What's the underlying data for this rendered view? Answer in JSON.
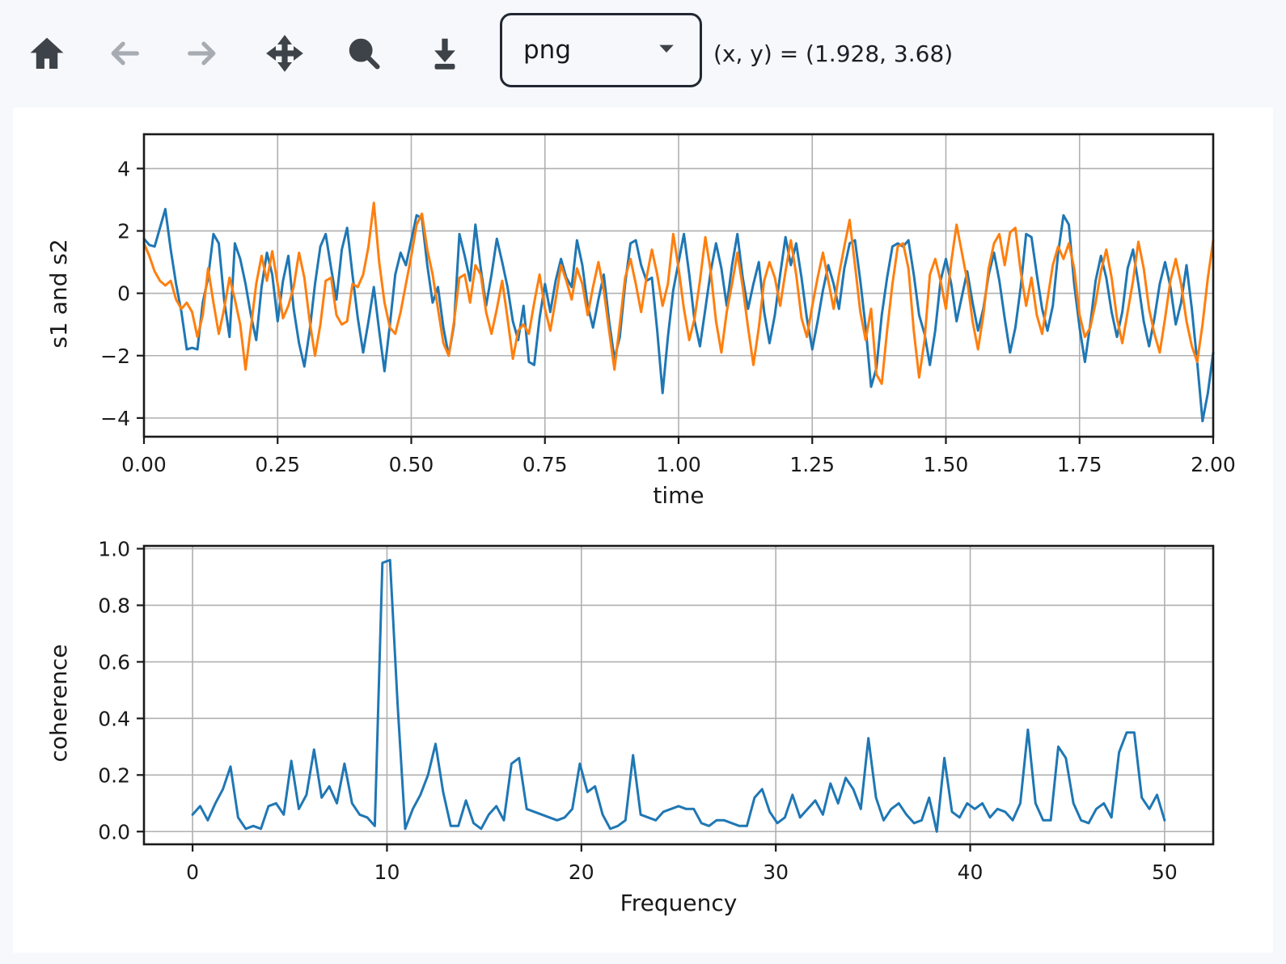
{
  "toolbar": {
    "buttons": [
      {
        "id": "home",
        "icon": "home-icon",
        "tooltip": "Reset original view",
        "enabled": true
      },
      {
        "id": "back",
        "icon": "arrow-left-icon",
        "tooltip": "Back to previous view",
        "enabled": false
      },
      {
        "id": "forward",
        "icon": "arrow-right-icon",
        "tooltip": "Forward to next view",
        "enabled": false
      },
      {
        "id": "pan",
        "icon": "pan-arrows-icon",
        "tooltip": "Pan axes",
        "enabled": true
      },
      {
        "id": "zoom",
        "icon": "zoom-plus-icon",
        "tooltip": "Zoom to rectangle",
        "enabled": true
      },
      {
        "id": "download",
        "icon": "download-icon",
        "tooltip": "Download plot",
        "enabled": true
      }
    ],
    "format_select": {
      "value": "png"
    },
    "coordinates": "(x, y) = (1.928, 3.68)"
  },
  "colors": {
    "page_background": "#f7f8fc",
    "figure_background": "#ffffff",
    "series_blue": "#1f77b4",
    "series_orange": "#ff7f0e",
    "grid": "#b0b0b0",
    "icon_active": "#3d4349",
    "icon_disabled": "#a7abb2"
  },
  "chart_data": [
    {
      "type": "line",
      "title": "",
      "xlabel": "time",
      "ylabel": "s1 and s2",
      "grid": true,
      "legend": null,
      "xlim": [
        0,
        2
      ],
      "ylim": [
        -4.6,
        5.1
      ],
      "xticks": {
        "values": [
          0,
          0.25,
          0.5,
          0.75,
          1.0,
          1.25,
          1.5,
          1.75,
          2.0
        ],
        "labels": [
          "0.00",
          "0.25",
          "0.50",
          "0.75",
          "1.00",
          "1.25",
          "1.50",
          "1.75",
          "2.00"
        ]
      },
      "yticks": {
        "values": [
          -4,
          -2,
          0,
          2,
          4
        ],
        "labels": [
          "−4",
          "−2",
          "0",
          "2",
          "4"
        ]
      },
      "series": [
        {
          "name": "s1",
          "color": "#1f77b4",
          "x_start": 0,
          "x_step": 0.01,
          "y": [
            1.75,
            1.55,
            1.5,
            2.1,
            2.7,
            1.4,
            0.3,
            -0.6,
            -1.8,
            -1.75,
            -1.8,
            -0.3,
            0.5,
            1.9,
            1.6,
            -0.2,
            -1.4,
            1.6,
            1.1,
            0.3,
            -0.7,
            -1.5,
            0.2,
            1.3,
            0.6,
            -0.9,
            0.4,
            1.2,
            -0.5,
            -1.6,
            -2.35,
            -1.2,
            0.3,
            1.5,
            1.9,
            0.8,
            -0.2,
            1.4,
            2.1,
            0.6,
            -0.8,
            -1.9,
            -0.9,
            0.2,
            -1.2,
            -2.5,
            -1.0,
            0.6,
            1.3,
            0.9,
            1.7,
            2.5,
            2.4,
            0.9,
            -0.3,
            0.2,
            -1.1,
            -2.0,
            -1.0,
            1.9,
            1.2,
            0.4,
            2.2,
            0.8,
            -0.4,
            0.6,
            1.75,
            1.0,
            0.2,
            -0.9,
            -1.5,
            -0.4,
            -2.2,
            -2.3,
            -0.8,
            0.3,
            -0.6,
            0.4,
            1.1,
            0.5,
            0.2,
            1.7,
            0.9,
            -0.4,
            -1.1,
            -0.2,
            0.6,
            -0.9,
            -2.1,
            -1.4,
            0.3,
            1.6,
            1.7,
            0.9,
            0.4,
            0.5,
            -1.2,
            -3.2,
            -1.4,
            0.1,
            1.0,
            1.9,
            0.6,
            -0.9,
            -1.7,
            -0.5,
            0.7,
            1.6,
            0.8,
            -0.4,
            0.9,
            1.9,
            0.5,
            -0.5,
            0.3,
            1.0,
            -0.6,
            -1.6,
            -0.7,
            0.6,
            1.8,
            0.9,
            1.6,
            0.5,
            -0.8,
            -1.8,
            -0.9,
            0.1,
            0.9,
            0.3,
            -0.5,
            0.8,
            1.6,
            1.7,
            0.4,
            -1.1,
            -3.0,
            -2.4,
            -0.7,
            0.5,
            1.5,
            1.6,
            1.5,
            1.7,
            0.6,
            -0.7,
            -1.3,
            -2.3,
            -1.2,
            0.4,
            1.1,
            0.3,
            -0.9,
            -0.1,
            0.7,
            -0.3,
            -1.2,
            -0.5,
            0.6,
            1.3,
            0.4,
            -0.8,
            -1.9,
            -1.1,
            0.2,
            1.9,
            1.8,
            0.6,
            -0.5,
            -1.2,
            -0.4,
            1.3,
            2.5,
            2.2,
            0.3,
            -1.1,
            -2.2,
            -1.0,
            0.4,
            1.2,
            0.5,
            -0.6,
            -1.4,
            -0.6,
            0.8,
            1.4,
            0.3,
            -0.9,
            -1.7,
            -0.8,
            0.3,
            1.0,
            0.2,
            -1.0,
            -0.3,
            0.9,
            -0.5,
            -2.2,
            -4.1,
            -3.2,
            -1.9
          ]
        },
        {
          "name": "s2",
          "color": "#ff7f0e",
          "x_start": 0,
          "x_step": 0.01,
          "y": [
            1.6,
            1.2,
            0.7,
            0.4,
            0.25,
            0.4,
            -0.2,
            -0.5,
            -0.3,
            -0.6,
            -1.4,
            -0.7,
            0.8,
            -0.3,
            -1.3,
            -0.5,
            0.5,
            -0.2,
            -1.0,
            -2.45,
            -1.1,
            0.3,
            1.2,
            0.4,
            1.35,
            0.3,
            -0.8,
            -0.4,
            0.2,
            1.3,
            0.5,
            -0.9,
            -2.0,
            -1.0,
            0.4,
            0.5,
            -0.7,
            -1.0,
            -0.9,
            0.3,
            0.2,
            0.6,
            1.5,
            2.9,
            1.0,
            -0.3,
            -1.1,
            -1.3,
            -0.6,
            0.3,
            1.2,
            2.2,
            2.55,
            1.4,
            0.6,
            -0.5,
            -1.6,
            -2.0,
            -0.9,
            0.5,
            0.6,
            -0.3,
            0.9,
            0.6,
            -0.6,
            -1.3,
            -0.5,
            0.4,
            -0.8,
            -2.1,
            -1.2,
            -1.0,
            -1.3,
            -0.3,
            0.6,
            -0.5,
            -1.2,
            -0.2,
            0.9,
            0.4,
            -0.2,
            0.8,
            0.3,
            -0.7,
            0.2,
            1.0,
            0.1,
            -1.2,
            -2.45,
            -1.0,
            0.5,
            1.1,
            0.3,
            -0.6,
            0.5,
            1.4,
            0.6,
            -0.4,
            0.3,
            1.9,
            0.8,
            -0.5,
            -1.5,
            -0.8,
            0.4,
            1.8,
            0.7,
            -0.9,
            -1.9,
            -0.6,
            0.3,
            1.3,
            0.2,
            -1.1,
            -2.3,
            -1.1,
            0.4,
            1.0,
            0.5,
            -0.4,
            0.7,
            1.7,
            0.6,
            -0.8,
            -1.4,
            -0.4,
            0.5,
            1.3,
            0.4,
            -0.5,
            0.6,
            1.5,
            2.35,
            0.9,
            -0.6,
            -1.5,
            -0.5,
            -2.6,
            -2.9,
            -1.2,
            0.3,
            1.5,
            1.6,
            0.8,
            -1.2,
            -2.7,
            -1.5,
            0.6,
            1.1,
            0.4,
            -0.5,
            1.0,
            2.2,
            1.3,
            0.4,
            -0.9,
            -1.8,
            -0.7,
            0.8,
            1.6,
            1.9,
            0.9,
            1.95,
            2.1,
            0.7,
            -0.4,
            0.5,
            -0.7,
            -1.3,
            -0.2,
            0.9,
            1.5,
            1.1,
            1.6,
            0.8,
            -0.7,
            -1.4,
            -1.1,
            -0.3,
            0.7,
            1.4,
            0.5,
            -0.8,
            -1.6,
            -0.6,
            0.4,
            1.65,
            0.8,
            -0.5,
            -1.3,
            -1.9,
            -0.8,
            0.4,
            1.1,
            0.3,
            -0.9,
            -1.7,
            -2.2,
            -1.0,
            0.5,
            1.7
          ]
        }
      ]
    },
    {
      "type": "line",
      "title": "",
      "xlabel": "Frequency",
      "ylabel": "coherence",
      "grid": true,
      "legend": null,
      "xlim": [
        -2.5,
        52.5
      ],
      "ylim": [
        -0.045,
        1.01
      ],
      "xticks": {
        "values": [
          0,
          10,
          20,
          30,
          40,
          50
        ],
        "labels": [
          "0",
          "10",
          "20",
          "30",
          "40",
          "50"
        ]
      },
      "yticks": {
        "values": [
          0,
          0.2,
          0.4,
          0.6,
          0.8,
          1.0
        ],
        "labels": [
          "0.0",
          "0.2",
          "0.4",
          "0.6",
          "0.8",
          "1.0"
        ]
      },
      "series": [
        {
          "name": "coherence",
          "color": "#1f77b4",
          "x_start": 0,
          "x_step": 0.390625,
          "y": [
            0.06,
            0.09,
            0.04,
            0.1,
            0.15,
            0.23,
            0.05,
            0.01,
            0.02,
            0.01,
            0.09,
            0.1,
            0.06,
            0.25,
            0.08,
            0.13,
            0.29,
            0.12,
            0.16,
            0.1,
            0.24,
            0.1,
            0.06,
            0.05,
            0.02,
            0.95,
            0.96,
            0.45,
            0.01,
            0.08,
            0.13,
            0.2,
            0.31,
            0.14,
            0.02,
            0.02,
            0.11,
            0.03,
            0.01,
            0.06,
            0.09,
            0.04,
            0.24,
            0.26,
            0.08,
            0.07,
            0.06,
            0.05,
            0.04,
            0.05,
            0.08,
            0.24,
            0.14,
            0.16,
            0.06,
            0.01,
            0.02,
            0.04,
            0.27,
            0.06,
            0.05,
            0.04,
            0.07,
            0.08,
            0.09,
            0.08,
            0.08,
            0.03,
            0.02,
            0.04,
            0.04,
            0.03,
            0.02,
            0.02,
            0.12,
            0.15,
            0.07,
            0.03,
            0.05,
            0.13,
            0.05,
            0.08,
            0.11,
            0.06,
            0.17,
            0.1,
            0.19,
            0.15,
            0.08,
            0.33,
            0.12,
            0.04,
            0.08,
            0.1,
            0.06,
            0.03,
            0.04,
            0.12,
            0.0,
            0.26,
            0.07,
            0.05,
            0.1,
            0.08,
            0.1,
            0.05,
            0.08,
            0.07,
            0.04,
            0.1,
            0.36,
            0.1,
            0.04,
            0.04,
            0.3,
            0.26,
            0.1,
            0.04,
            0.03,
            0.08,
            0.1,
            0.05,
            0.28,
            0.35,
            0.35,
            0.12,
            0.08,
            0.13,
            0.04
          ]
        }
      ]
    }
  ]
}
